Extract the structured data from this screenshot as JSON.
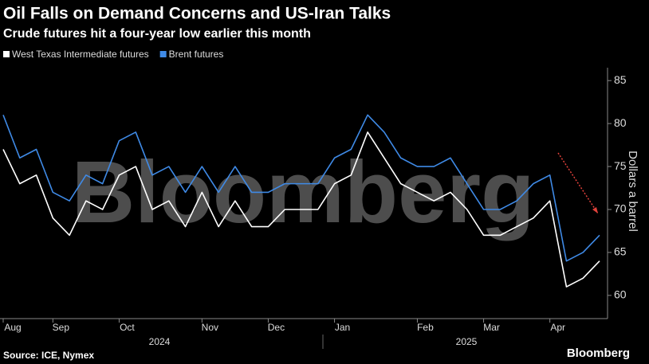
{
  "chart_data": {
    "type": "line",
    "title": "Oil Falls on Demand Concerns and US-Iran Talks",
    "subtitle": "Crude futures hit a four-year low earlier this month",
    "y_label": "Dollars a barrel",
    "source": "Source: ICE, Nymex",
    "watermark": "Bloomberg",
    "logo": "Bloomberg",
    "year_labels": [
      "2024",
      "2025"
    ],
    "categories": [
      "Aug",
      null,
      null,
      "Sep",
      null,
      null,
      null,
      "Oct",
      null,
      null,
      null,
      null,
      "Nov",
      null,
      null,
      null,
      "Dec",
      null,
      null,
      null,
      "Jan",
      null,
      null,
      null,
      null,
      "Feb",
      null,
      null,
      null,
      "Mar",
      null,
      null,
      null,
      "Apr",
      null,
      null,
      null
    ],
    "series": [
      {
        "name": "West Texas Intermediate futures",
        "color": "#ffffff",
        "values": [
          77,
          73,
          74,
          69,
          67,
          71,
          70,
          74,
          75,
          70,
          71,
          68,
          72,
          68,
          71,
          68,
          68,
          70,
          70,
          70,
          73,
          74,
          79,
          76,
          73,
          72,
          71,
          72,
          70,
          67,
          67,
          68,
          69,
          71,
          61,
          62,
          64
        ]
      },
      {
        "name": "Brent futures",
        "color": "#3f8ae6",
        "values": [
          81,
          76,
          77,
          72,
          71,
          74,
          73,
          78,
          79,
          74,
          75,
          72,
          75,
          72,
          75,
          72,
          72,
          73,
          73,
          73,
          76,
          77,
          81,
          79,
          76,
          75,
          75,
          76,
          73,
          70,
          70,
          71,
          73,
          74,
          64,
          65,
          67
        ]
      }
    ],
    "ylim": [
      57.3,
      86.5
    ],
    "yticks": [
      60,
      65,
      70,
      75,
      80,
      85
    ],
    "grid": false
  }
}
